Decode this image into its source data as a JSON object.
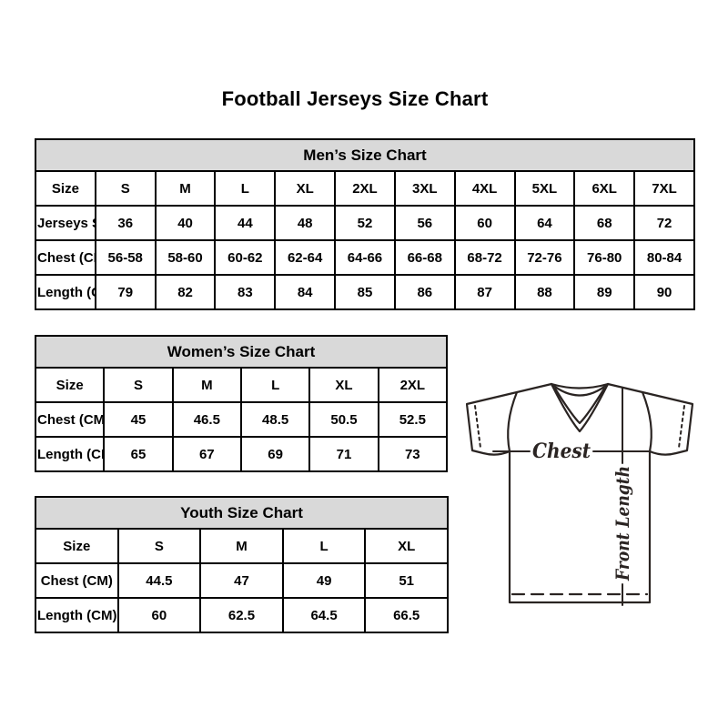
{
  "page": {
    "title": "Football Jerseys Size Chart"
  },
  "tables": [
    {
      "id": "men",
      "title": "Men’s Size Chart",
      "label_col_width": 110,
      "rows": [
        {
          "label": "Size",
          "values": [
            "S",
            "M",
            "L",
            "XL",
            "2XL",
            "3XL",
            "4XL",
            "5XL",
            "6XL",
            "7XL"
          ]
        },
        {
          "label": "Jerseys Size",
          "values": [
            "36",
            "40",
            "44",
            "48",
            "52",
            "56",
            "60",
            "64",
            "68",
            "72"
          ]
        },
        {
          "label": "Chest (CM)",
          "values": [
            "56-58",
            "58-60",
            "60-62",
            "62-64",
            "64-66",
            "66-68",
            "68-72",
            "72-76",
            "76-80",
            "80-84"
          ]
        },
        {
          "label": "Length (CM)",
          "values": [
            "79",
            "82",
            "83",
            "84",
            "85",
            "86",
            "87",
            "88",
            "89",
            "90"
          ]
        }
      ]
    },
    {
      "id": "women",
      "title": "Women’s Size Chart",
      "label_col_width": 112,
      "rows": [
        {
          "label": "Size",
          "values": [
            "S",
            "M",
            "L",
            "XL",
            "2XL"
          ]
        },
        {
          "label": "Chest (CM)",
          "values": [
            "45",
            "46.5",
            "48.5",
            "50.5",
            "52.5"
          ]
        },
        {
          "label": "Length (CM)",
          "values": [
            "65",
            "67",
            "69",
            "71",
            "73"
          ]
        }
      ]
    },
    {
      "id": "youth",
      "title": "Youth Size Chart",
      "label_col_width": 112,
      "rows": [
        {
          "label": "Size",
          "values": [
            "S",
            "M",
            "L",
            "XL"
          ]
        },
        {
          "label": "Chest (CM)",
          "values": [
            "44.5",
            "47",
            "49",
            "51"
          ]
        },
        {
          "label": "Length (CM)",
          "values": [
            "60",
            "62.5",
            "64.5",
            "66.5"
          ]
        }
      ]
    }
  ],
  "jersey": {
    "chest_label": "Chest",
    "front_length_label": "Front Length"
  },
  "colors": {
    "table_header_bg": "#d9d9d9",
    "table_border": "#000000",
    "jersey_line": "#2a2422"
  }
}
